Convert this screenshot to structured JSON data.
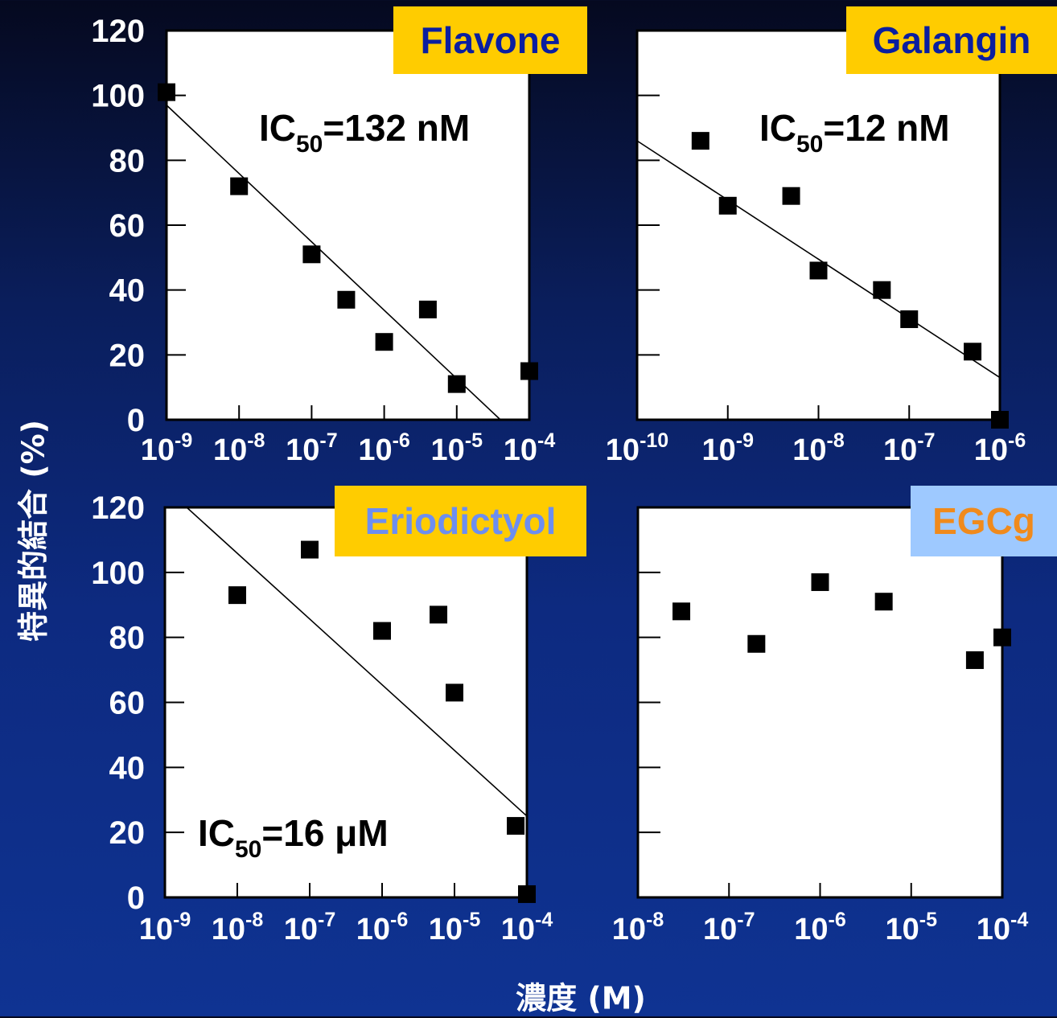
{
  "ylabel": "特異的結合 (%)",
  "xlabel": "濃度 (M)",
  "colors": {
    "background": "#0a1e5c",
    "plot_bg": "#ffffff",
    "tick_text": "#ffffff",
    "marker": "#000000",
    "fit_line": "#000000"
  },
  "chart_data": [
    {
      "type": "scatter",
      "title": "Flavone",
      "title_color": "#0a1ea0",
      "title_bg": "#ffcc00",
      "annotation": {
        "base": "IC",
        "sub": "50",
        "tail": "=132 nM"
      },
      "xscale": "log",
      "xlim": [
        -9,
        -4
      ],
      "xticks": [
        {
          "base": "10",
          "exp": "-9"
        },
        {
          "base": "10",
          "exp": "-8"
        },
        {
          "base": "10",
          "exp": "-7"
        },
        {
          "base": "10",
          "exp": "-6"
        },
        {
          "base": "10",
          "exp": "-5"
        },
        {
          "base": "10",
          "exp": "-4"
        }
      ],
      "ylim": [
        0,
        120
      ],
      "yticks": [
        "0",
        "20",
        "40",
        "60",
        "80",
        "100",
        "120"
      ],
      "points": [
        {
          "x": "1e-9",
          "y": 101
        },
        {
          "x": "1e-8",
          "y": 72
        },
        {
          "x": "1e-7",
          "y": 51
        },
        {
          "x": "3e-7",
          "y": 37
        },
        {
          "x": "1e-6",
          "y": 24
        },
        {
          "x": "4e-6",
          "y": 34
        },
        {
          "x": "1e-5",
          "y": 11
        },
        {
          "x": "1e-4",
          "y": 15
        }
      ],
      "fit_line": [
        {
          "x": "1e-9",
          "y": 97
        },
        {
          "x": "4e-5",
          "y": 0
        }
      ]
    },
    {
      "type": "scatter",
      "title": "Galangin",
      "title_color": "#0a1ea0",
      "title_bg": "#ffcc00",
      "annotation": {
        "base": "IC",
        "sub": "50",
        "tail": "=12 nM"
      },
      "xscale": "log",
      "xlim": [
        -10,
        -6
      ],
      "xticks": [
        {
          "base": "10",
          "exp": "-10"
        },
        {
          "base": "10",
          "exp": "-9"
        },
        {
          "base": "10",
          "exp": "-8"
        },
        {
          "base": "10",
          "exp": "-7"
        },
        {
          "base": "10",
          "exp": "-6"
        }
      ],
      "ylim": [
        0,
        120
      ],
      "points": [
        {
          "x": "5e-10",
          "y": 86
        },
        {
          "x": "1e-9",
          "y": 66
        },
        {
          "x": "5e-9",
          "y": 69
        },
        {
          "x": "1e-8",
          "y": 46
        },
        {
          "x": "5e-8",
          "y": 40
        },
        {
          "x": "1e-7",
          "y": 31
        },
        {
          "x": "5e-7",
          "y": 21
        },
        {
          "x": "1e-6",
          "y": 0
        }
      ],
      "fit_line": [
        {
          "x": "1e-10",
          "y": 86
        },
        {
          "x": "1e-6",
          "y": 13
        }
      ]
    },
    {
      "type": "scatter",
      "title": "Eriodictyol",
      "title_color": "#6d8ef0",
      "title_bg": "#ffcc00",
      "annotation": {
        "base": "IC",
        "sub": "50",
        "tail": "=16 μM"
      },
      "xscale": "log",
      "xlim": [
        -9,
        -4
      ],
      "xticks": [
        {
          "base": "10",
          "exp": "-9"
        },
        {
          "base": "10",
          "exp": "-8"
        },
        {
          "base": "10",
          "exp": "-7"
        },
        {
          "base": "10",
          "exp": "-6"
        },
        {
          "base": "10",
          "exp": "-5"
        },
        {
          "base": "10",
          "exp": "-4"
        }
      ],
      "ylim": [
        0,
        120
      ],
      "yticks": [
        "0",
        "20",
        "40",
        "60",
        "80",
        "100",
        "120"
      ],
      "points": [
        {
          "x": "1e-8",
          "y": 93
        },
        {
          "x": "1e-7",
          "y": 107
        },
        {
          "x": "1e-6",
          "y": 82
        },
        {
          "x": "6e-6",
          "y": 87
        },
        {
          "x": "1e-5",
          "y": 63
        },
        {
          "x": "7e-5",
          "y": 22
        },
        {
          "x": "1e-4",
          "y": 1
        }
      ],
      "fit_line": [
        {
          "x": "2e-9",
          "y": 120
        },
        {
          "x": "1e-4",
          "y": 25
        }
      ]
    },
    {
      "type": "scatter",
      "title": "EGCg",
      "title_color": "#f08a1c",
      "title_bg": "#9ec9ff",
      "xscale": "log",
      "xlim": [
        -8,
        -4
      ],
      "xticks": [
        {
          "base": "10",
          "exp": "-8"
        },
        {
          "base": "10",
          "exp": "-7"
        },
        {
          "base": "10",
          "exp": "-6"
        },
        {
          "base": "10",
          "exp": "-5"
        },
        {
          "base": "10",
          "exp": "-4"
        }
      ],
      "ylim": [
        0,
        120
      ],
      "points": [
        {
          "x": "3e-8",
          "y": 88
        },
        {
          "x": "2e-7",
          "y": 78
        },
        {
          "x": "1e-6",
          "y": 97
        },
        {
          "x": "5e-6",
          "y": 91
        },
        {
          "x": "5e-5",
          "y": 73
        },
        {
          "x": "1e-4",
          "y": 80
        }
      ]
    }
  ]
}
